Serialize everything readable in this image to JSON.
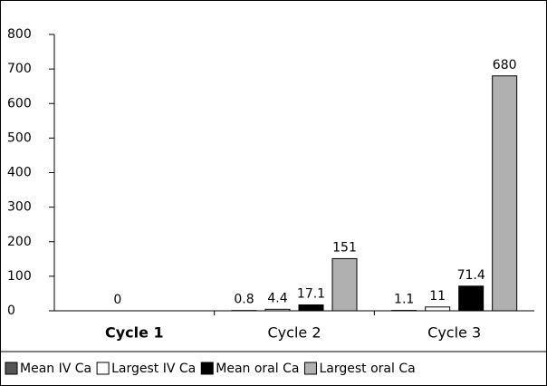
{
  "chart_data": {
    "type": "bar",
    "categories": [
      "Cycle 1",
      "Cycle 2",
      "Cycle 3"
    ],
    "series": [
      {
        "name": "Mean IV Ca",
        "color": "#555555",
        "values": [
          null,
          0.8,
          1.1
        ]
      },
      {
        "name": "Largest IV Ca",
        "color": "#ffffff",
        "values": [
          0,
          4.4,
          11
        ]
      },
      {
        "name": "Mean oral Ca",
        "color": "#000000",
        "values": [
          null,
          17.1,
          71.4
        ]
      },
      {
        "name": "Largest oral Ca",
        "color": "#b0b0b0",
        "values": [
          null,
          151,
          680
        ]
      }
    ],
    "ylim": [
      0,
      800
    ],
    "yticks": [
      0,
      100,
      200,
      300,
      400,
      500,
      600,
      700,
      800
    ],
    "legend": "bottom"
  }
}
